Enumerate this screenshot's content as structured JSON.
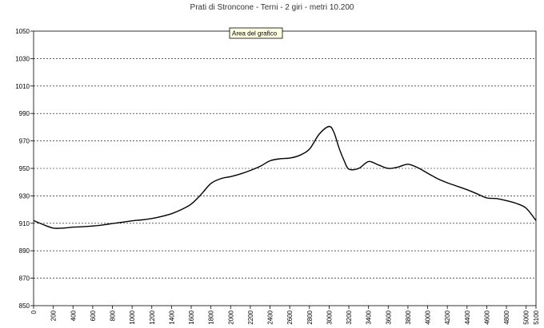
{
  "chart_data": {
    "type": "line",
    "title": "Prati di Stroncone - Terni - 2 giri - metri 10.200",
    "xlabel": "",
    "ylabel": "",
    "xlim": [
      0,
      5100
    ],
    "ylim": [
      850,
      1050
    ],
    "x_ticks": [
      0,
      200,
      400,
      600,
      800,
      1000,
      1200,
      1400,
      1600,
      1800,
      2000,
      2200,
      2400,
      2600,
      2800,
      3000,
      3200,
      3400,
      3600,
      3800,
      4000,
      4200,
      4400,
      4600,
      4800,
      5000,
      5100
    ],
    "y_ticks": [
      850,
      870,
      890,
      910,
      930,
      950,
      970,
      990,
      1010,
      1030,
      1050
    ],
    "grid": "horizontal-dashed",
    "legend": "none",
    "series": [
      {
        "name": "",
        "color": "#000000",
        "points": [
          [
            0,
            912
          ],
          [
            100,
            909
          ],
          [
            200,
            906.5
          ],
          [
            300,
            906.5
          ],
          [
            400,
            907.2
          ],
          [
            500,
            907.5
          ],
          [
            600,
            908
          ],
          [
            700,
            908.8
          ],
          [
            800,
            909.8
          ],
          [
            900,
            910.8
          ],
          [
            1000,
            911.8
          ],
          [
            1100,
            912.5
          ],
          [
            1200,
            913.5
          ],
          [
            1300,
            915
          ],
          [
            1400,
            917
          ],
          [
            1500,
            920
          ],
          [
            1600,
            924
          ],
          [
            1700,
            931
          ],
          [
            1800,
            939
          ],
          [
            1900,
            942.5
          ],
          [
            2000,
            944
          ],
          [
            2100,
            946
          ],
          [
            2200,
            948.5
          ],
          [
            2300,
            951.5
          ],
          [
            2400,
            955.5
          ],
          [
            2500,
            957
          ],
          [
            2600,
            957.5
          ],
          [
            2700,
            959.5
          ],
          [
            2800,
            964
          ],
          [
            2900,
            975
          ],
          [
            3000,
            980.5
          ],
          [
            3050,
            976
          ],
          [
            3100,
            965
          ],
          [
            3150,
            956
          ],
          [
            3200,
            949.5
          ],
          [
            3300,
            950
          ],
          [
            3400,
            955
          ],
          [
            3500,
            952.5
          ],
          [
            3600,
            950
          ],
          [
            3700,
            951
          ],
          [
            3800,
            953
          ],
          [
            3900,
            950.5
          ],
          [
            4000,
            946.5
          ],
          [
            4100,
            942.5
          ],
          [
            4200,
            939.5
          ],
          [
            4300,
            937
          ],
          [
            4400,
            934.5
          ],
          [
            4500,
            931.5
          ],
          [
            4600,
            928.5
          ],
          [
            4700,
            928
          ],
          [
            4800,
            926.5
          ],
          [
            4900,
            924.5
          ],
          [
            5000,
            921
          ],
          [
            5100,
            912
          ]
        ]
      }
    ]
  },
  "tooltip": {
    "label": "Area del grafico"
  }
}
